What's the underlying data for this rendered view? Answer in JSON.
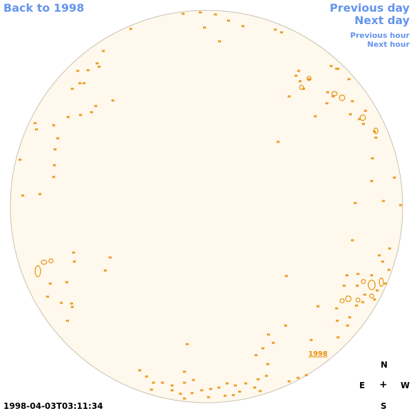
{
  "nav": {
    "back": "Back to 1998",
    "previous_day": "Previous day",
    "next_day": "Next day",
    "previous_hour": "Previous hour",
    "next_hour": "Next hour"
  },
  "compass": {
    "north": "N",
    "east": "E",
    "center": "+",
    "west": "W",
    "south": "S"
  },
  "timestamp": "1998-04-03T03:11:34",
  "year_label": "1998",
  "colors": {
    "link": "#6495ed",
    "disk_fill": "#fff8ec",
    "disk_stroke": "#c8c0b0",
    "feature": "#e8900c"
  }
}
